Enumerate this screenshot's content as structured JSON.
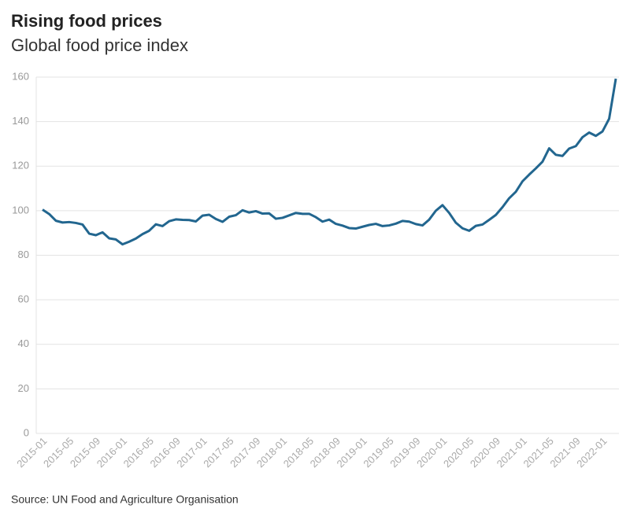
{
  "chart_data": {
    "type": "line",
    "title": "Rising food prices",
    "subtitle": "Global food price index",
    "source": "Source: UN Food and Agriculture Organisation",
    "categories": [
      "2015-01",
      null,
      null,
      null,
      "2015-05",
      null,
      null,
      null,
      "2015-09",
      null,
      null,
      null,
      "2016-01",
      null,
      null,
      null,
      "2016-05",
      null,
      null,
      null,
      "2016-09",
      null,
      null,
      null,
      "2017-01",
      null,
      null,
      null,
      "2017-05",
      null,
      null,
      null,
      "2017-09",
      null,
      null,
      null,
      "2018-01",
      null,
      null,
      null,
      "2018-05",
      null,
      null,
      null,
      "2018-09",
      null,
      null,
      null,
      "2019-01",
      null,
      null,
      null,
      "2019-05",
      null,
      null,
      null,
      "2019-09",
      null,
      null,
      null,
      "2020-01",
      null,
      null,
      null,
      "2020-05",
      null,
      null,
      null,
      "2020-09",
      null,
      null,
      null,
      "2021-01",
      null,
      null,
      null,
      "2021-05",
      null,
      null,
      null,
      "2021-09",
      null,
      null,
      null,
      "2022-01",
      null,
      null
    ],
    "series": [
      {
        "name": "Global food price index",
        "color": "#22668f",
        "values": [
          100.5,
          98.5,
          95.5,
          94.7,
          94.9,
          94.5,
          93.8,
          89.7,
          89.0,
          90.3,
          87.6,
          87.1,
          84.9,
          86.1,
          87.5,
          89.5,
          91.0,
          93.9,
          93.1,
          95.3,
          96.1,
          95.9,
          95.8,
          95.2,
          97.8,
          98.2,
          96.3,
          95.0,
          97.3,
          98.0,
          100.2,
          99.2,
          99.8,
          98.7,
          98.8,
          96.4,
          96.8,
          97.9,
          99.0,
          98.6,
          98.6,
          97.1,
          95.1,
          96.0,
          94.1,
          93.3,
          92.2,
          92.0,
          92.8,
          93.6,
          94.1,
          93.1,
          93.4,
          94.2,
          95.4,
          95.1,
          94.0,
          93.4,
          96.0,
          100.0,
          102.5,
          99.0,
          94.6,
          92.1,
          91.0,
          93.2,
          93.8,
          95.9,
          98.1,
          101.6,
          105.6,
          108.5,
          113.2,
          116.2,
          119.0,
          122.0,
          128.0,
          125.1,
          124.6,
          127.9,
          129.0,
          133.0,
          135.1,
          133.6,
          135.6,
          141.3,
          159.3
        ]
      }
    ],
    "ylim": [
      0,
      160
    ],
    "yticks": [
      0,
      20,
      40,
      60,
      80,
      100,
      120,
      140,
      160
    ],
    "grid": true
  }
}
